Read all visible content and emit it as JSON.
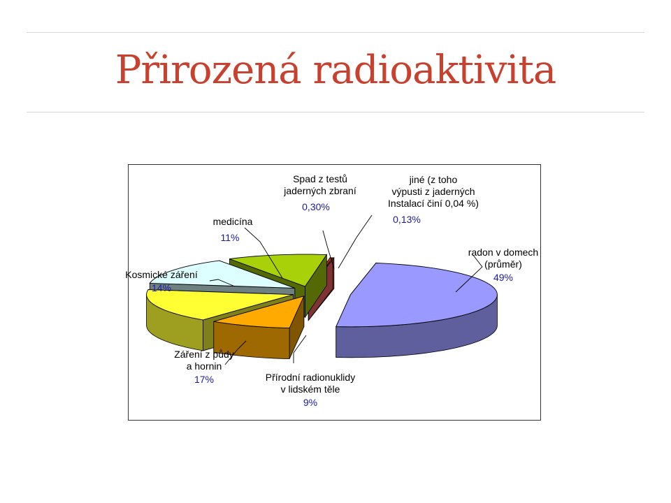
{
  "slide": {
    "title": "Přirozená radioaktivita"
  },
  "chart_data": {
    "type": "pie",
    "style": "3d-exploded",
    "title": "",
    "slices": [
      {
        "key": "radon",
        "label_lines": [
          "radon v domech",
          "(průměr)"
        ],
        "value": 49,
        "value_label": "49%",
        "color": "#9999ff"
      },
      {
        "key": "body",
        "label_lines": [
          "Přírodní radionuklidy",
          "v lidském těle"
        ],
        "value": 9,
        "value_label": "9%",
        "color": "#ffaa00"
      },
      {
        "key": "soil",
        "label_lines": [
          "Záření z půdy",
          "a hornin"
        ],
        "value": 17,
        "value_label": "17%",
        "color": "#ffff33"
      },
      {
        "key": "cosmic",
        "label_lines": [
          "Kosmické záření"
        ],
        "value": 14,
        "value_label": "14%",
        "color": "#ddffff"
      },
      {
        "key": "medicine",
        "label_lines": [
          "medicína"
        ],
        "value": 11,
        "value_label": "11%",
        "color": "#a8d10a"
      },
      {
        "key": "fallout",
        "label_lines": [
          "Spad z testů",
          "jaderných zbraní"
        ],
        "value": 0.3,
        "value_label": "0,30%",
        "color": "#cc3300"
      },
      {
        "key": "other",
        "label_lines": [
          "jiné (z toho",
          "výpusti z jaderných",
          "Instalací činí 0,04 %)"
        ],
        "value": 0.13,
        "value_label": "0,13%",
        "color": "#ff6666"
      }
    ]
  }
}
